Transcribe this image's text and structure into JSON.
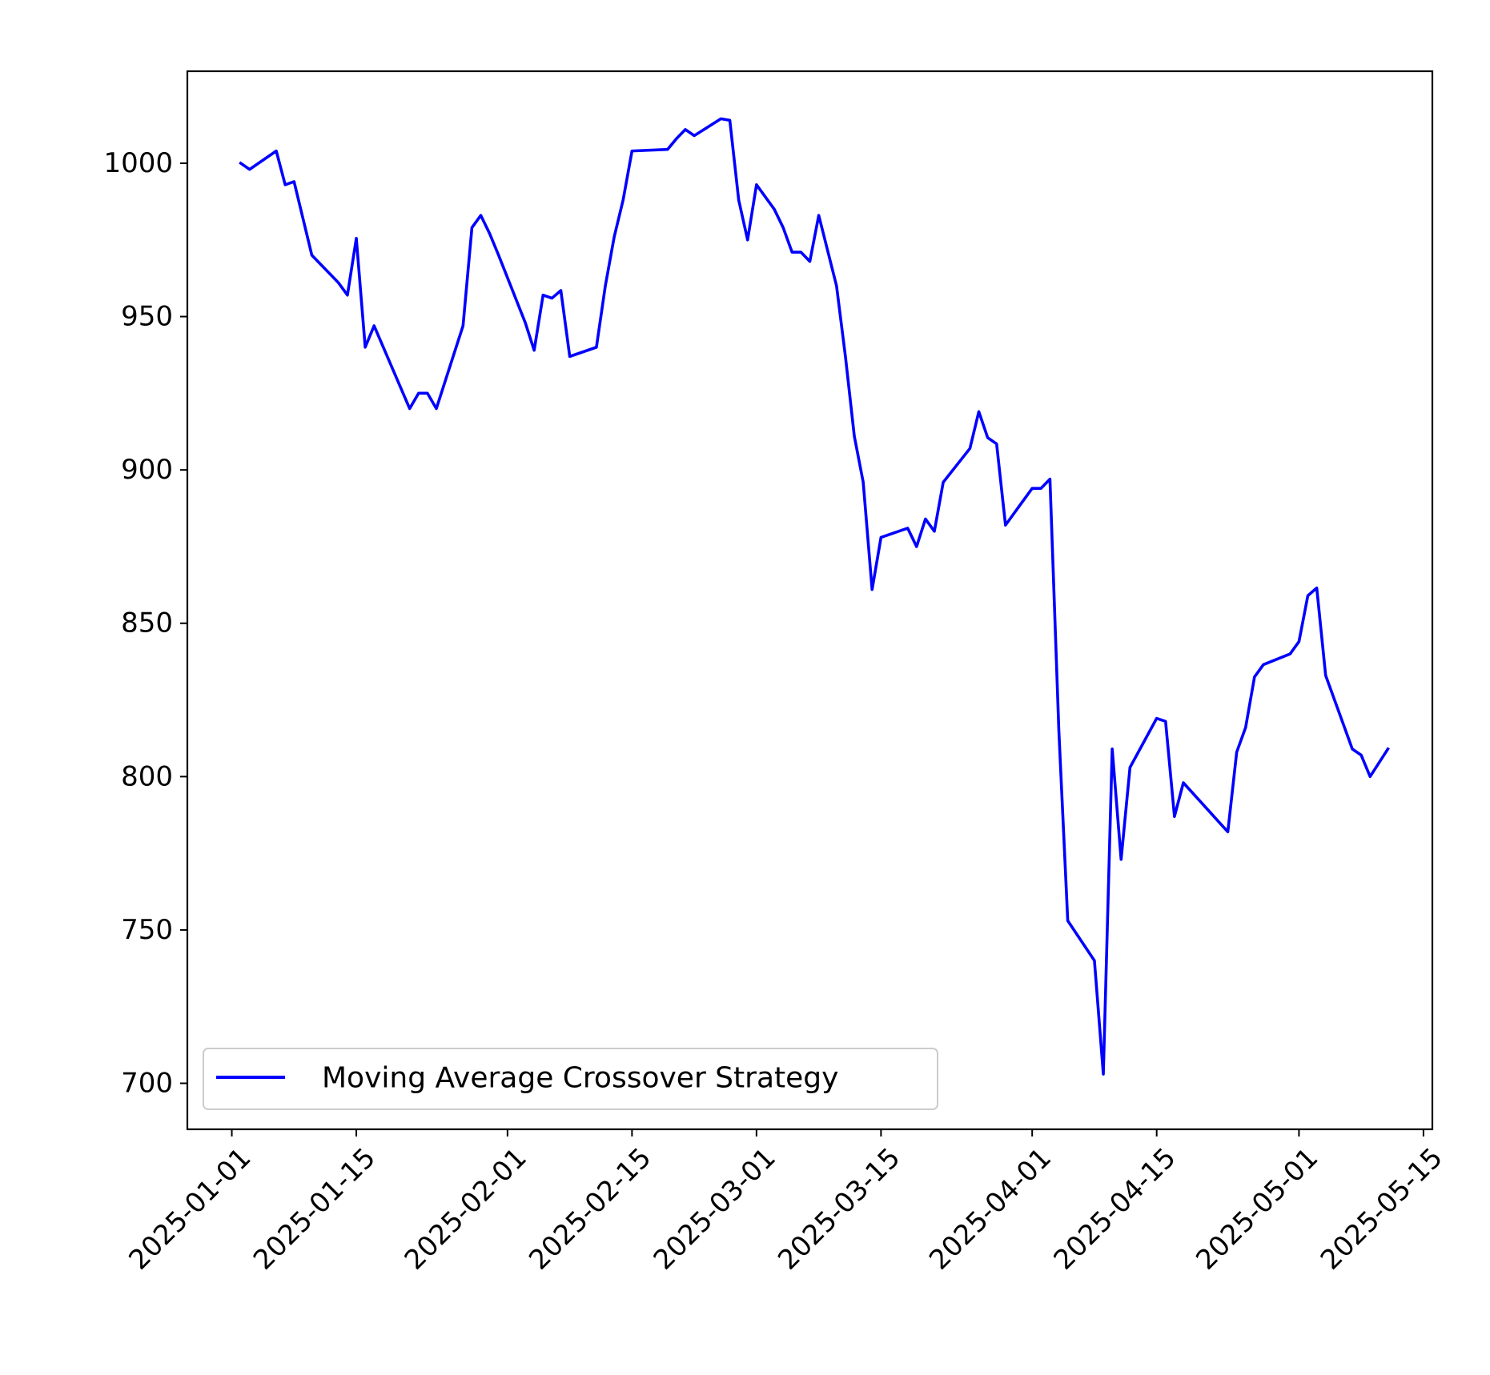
{
  "chart_data": {
    "type": "line",
    "title": "",
    "xlabel": "",
    "ylabel": "",
    "x_axis_type": "date",
    "xlim": [
      "2024-12-27",
      "2025-05-16"
    ],
    "ylim": [
      685,
      1030
    ],
    "grid": false,
    "legend_position": "lower-left",
    "x_ticks": [
      "2025-01-01",
      "2025-01-15",
      "2025-02-01",
      "2025-02-15",
      "2025-03-01",
      "2025-03-15",
      "2025-04-01",
      "2025-04-15",
      "2025-05-01",
      "2025-05-15"
    ],
    "y_ticks": [
      700,
      750,
      800,
      850,
      900,
      950,
      1000
    ],
    "series": [
      {
        "name": "Moving Average Crossover Strategy",
        "color": "#0000ff",
        "points": [
          [
            "2025-01-02",
            1000
          ],
          [
            "2025-01-03",
            998
          ],
          [
            "2025-01-06",
            1004
          ],
          [
            "2025-01-07",
            993
          ],
          [
            "2025-01-08",
            994
          ],
          [
            "2025-01-10",
            970
          ],
          [
            "2025-01-13",
            961
          ],
          [
            "2025-01-14",
            957
          ],
          [
            "2025-01-15",
            975.5
          ],
          [
            "2025-01-16",
            940
          ],
          [
            "2025-01-17",
            947
          ],
          [
            "2025-01-21",
            920
          ],
          [
            "2025-01-22",
            925
          ],
          [
            "2025-01-23",
            925
          ],
          [
            "2025-01-24",
            920
          ],
          [
            "2025-01-27",
            947
          ],
          [
            "2025-01-28",
            979
          ],
          [
            "2025-01-29",
            983
          ],
          [
            "2025-01-30",
            977
          ],
          [
            "2025-01-31",
            970
          ],
          [
            "2025-02-03",
            948
          ],
          [
            "2025-02-04",
            939
          ],
          [
            "2025-02-05",
            957
          ],
          [
            "2025-02-06",
            956
          ],
          [
            "2025-02-07",
            958.5
          ],
          [
            "2025-02-08",
            937
          ],
          [
            "2025-02-11",
            940
          ],
          [
            "2025-02-12",
            960
          ],
          [
            "2025-02-13",
            976
          ],
          [
            "2025-02-14",
            988
          ],
          [
            "2025-02-15",
            1004
          ],
          [
            "2025-02-19",
            1004.5
          ],
          [
            "2025-02-20",
            1008
          ],
          [
            "2025-02-21",
            1011
          ],
          [
            "2025-02-22",
            1009
          ],
          [
            "2025-02-25",
            1014.5
          ],
          [
            "2025-02-26",
            1014
          ],
          [
            "2025-02-27",
            988
          ],
          [
            "2025-02-28",
            975
          ],
          [
            "2025-03-01",
            993
          ],
          [
            "2025-03-03",
            985
          ],
          [
            "2025-03-04",
            979
          ],
          [
            "2025-03-05",
            971
          ],
          [
            "2025-03-06",
            971
          ],
          [
            "2025-03-07",
            968
          ],
          [
            "2025-03-08",
            983
          ],
          [
            "2025-03-10",
            960
          ],
          [
            "2025-03-11",
            937
          ],
          [
            "2025-03-12",
            911
          ],
          [
            "2025-03-13",
            896
          ],
          [
            "2025-03-14",
            861
          ],
          [
            "2025-03-15",
            878
          ],
          [
            "2025-03-18",
            881
          ],
          [
            "2025-03-19",
            875
          ],
          [
            "2025-03-20",
            884
          ],
          [
            "2025-03-21",
            880
          ],
          [
            "2025-03-22",
            896
          ],
          [
            "2025-03-25",
            907
          ],
          [
            "2025-03-26",
            919
          ],
          [
            "2025-03-27",
            910.5
          ],
          [
            "2025-03-28",
            908.5
          ],
          [
            "2025-03-29",
            882
          ],
          [
            "2025-04-01",
            894
          ],
          [
            "2025-04-02",
            894
          ],
          [
            "2025-04-03",
            897
          ],
          [
            "2025-04-04",
            815
          ],
          [
            "2025-04-05",
            753
          ],
          [
            "2025-04-08",
            740
          ],
          [
            "2025-04-09",
            703
          ],
          [
            "2025-04-10",
            809
          ],
          [
            "2025-04-11",
            773
          ],
          [
            "2025-04-12",
            803
          ],
          [
            "2025-04-15",
            819
          ],
          [
            "2025-04-16",
            818
          ],
          [
            "2025-04-17",
            787
          ],
          [
            "2025-04-18",
            798
          ],
          [
            "2025-04-23",
            782
          ],
          [
            "2025-04-24",
            808
          ],
          [
            "2025-04-25",
            816
          ],
          [
            "2025-04-26",
            832.5
          ],
          [
            "2025-04-27",
            836.5
          ],
          [
            "2025-04-30",
            840
          ],
          [
            "2025-05-01",
            844
          ],
          [
            "2025-05-02",
            859
          ],
          [
            "2025-05-03",
            861.5
          ],
          [
            "2025-05-04",
            833
          ],
          [
            "2025-05-07",
            809
          ],
          [
            "2025-05-08",
            807
          ],
          [
            "2025-05-09",
            800
          ],
          [
            "2025-05-11",
            809
          ]
        ]
      }
    ]
  }
}
